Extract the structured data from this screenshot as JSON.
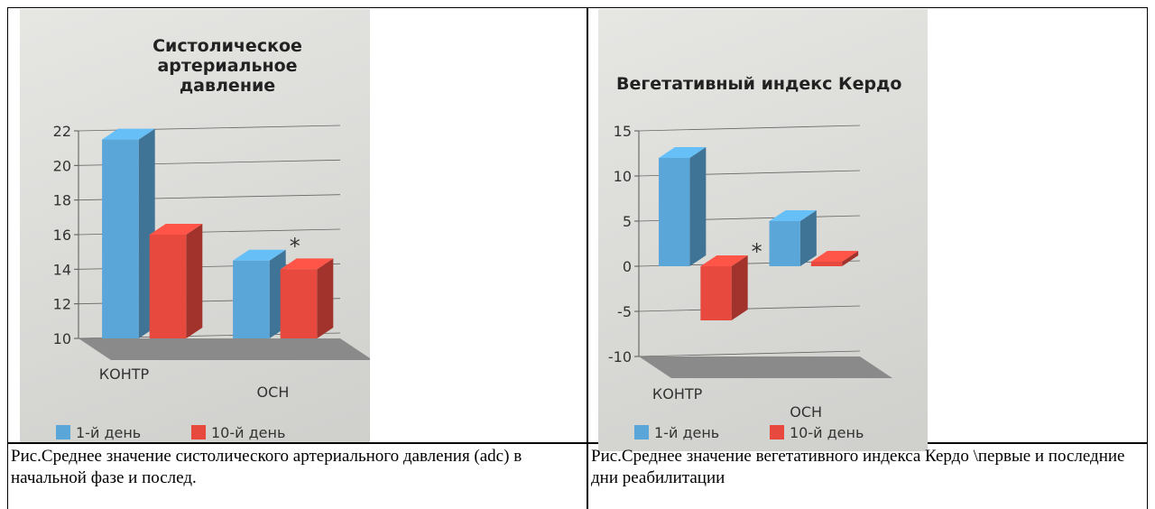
{
  "chart_data": [
    {
      "type": "bar",
      "title": "Систолическое артериальное давление",
      "categories": [
        "КОНТР",
        "ОСН"
      ],
      "series": [
        {
          "name": "1-й день",
          "color": "#5aa6d8",
          "values": [
            21.5,
            14.5
          ]
        },
        {
          "name": "10-й день",
          "color": "#e8493f",
          "values": [
            16,
            14
          ]
        }
      ],
      "ylim": [
        10,
        22
      ],
      "yticks": [
        10,
        12,
        14,
        16,
        18,
        20,
        22
      ],
      "grid": true,
      "annotation": "*",
      "legend": "bottom"
    },
    {
      "type": "bar",
      "title": "Вегетативный индекс Кердо",
      "categories": [
        "КОНТР",
        "ОСН"
      ],
      "series": [
        {
          "name": "1-й день",
          "color": "#5aa6d8",
          "values": [
            12,
            5
          ]
        },
        {
          "name": "10-й день",
          "color": "#e8493f",
          "values": [
            -6,
            0.5
          ]
        }
      ],
      "ylim": [
        -10,
        15
      ],
      "yticks": [
        -10,
        -5,
        0,
        5,
        10,
        15
      ],
      "grid": true,
      "annotation": "*",
      "legend": "bottom"
    }
  ],
  "captions": [
    "Рис.Среднее значение систолического артериального давления (adc) в начальной фазе и послед.",
    "Рис.Среднее значение вегетативного индекса Кердо \\первые и последние дни реабилитации"
  ]
}
